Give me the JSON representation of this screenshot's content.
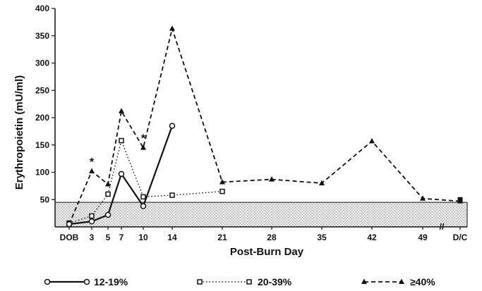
{
  "chart_data": {
    "type": "line",
    "title": "",
    "xlabel": "Post-Burn Day",
    "ylabel": "Erythropoietin (mU/ml)",
    "ylim": [
      0,
      400
    ],
    "y_ticks": [
      "50",
      "100",
      "150",
      "200",
      "250",
      "300",
      "350",
      "400"
    ],
    "categories": [
      "DOB",
      "3",
      "5",
      "7",
      "10",
      "14",
      "21",
      "28",
      "35",
      "42",
      "49",
      "D/C"
    ],
    "axis_break_label": "//",
    "normal_range": {
      "min": 0,
      "max": 45
    },
    "grid": false,
    "legend_placement": "bottom",
    "series": [
      {
        "name": "12-19%",
        "line_style": "solid",
        "marker": "open-circle",
        "points": [
          {
            "x": "DOB",
            "y": 5
          },
          {
            "x": "3",
            "y": 10
          },
          {
            "x": "5",
            "y": 22
          },
          {
            "x": "7",
            "y": 97
          },
          {
            "x": "10",
            "y": 38
          },
          {
            "x": "14",
            "y": 185
          }
        ]
      },
      {
        "name": "20-39%",
        "line_style": "dotted",
        "marker": "open-square",
        "points": [
          {
            "x": "DOB",
            "y": 7
          },
          {
            "x": "3",
            "y": 20
          },
          {
            "x": "5",
            "y": 60
          },
          {
            "x": "7",
            "y": 158
          },
          {
            "x": "10",
            "y": 55
          },
          {
            "x": "14",
            "y": 58
          },
          {
            "x": "21",
            "y": 65
          }
        ]
      },
      {
        "name": "≥40%",
        "line_style": "dashed",
        "marker": "filled-triangle",
        "points": [
          {
            "x": "DOB",
            "y": 5
          },
          {
            "x": "3",
            "y": 102
          },
          {
            "x": "5",
            "y": 78
          },
          {
            "x": "7",
            "y": 212
          },
          {
            "x": "10",
            "y": 145
          },
          {
            "x": "14",
            "y": 363
          },
          {
            "x": "21",
            "y": 82
          },
          {
            "x": "28",
            "y": 87
          },
          {
            "x": "35",
            "y": 80
          },
          {
            "x": "42",
            "y": 157
          },
          {
            "x": "49",
            "y": 52
          },
          {
            "x": "D/C",
            "y": 47
          }
        ]
      }
    ],
    "end_marker": {
      "x": "D/C",
      "y": 50,
      "marker": "filled-square"
    },
    "annotations": [
      {
        "text": "*",
        "x": "3",
        "y": 102
      },
      {
        "text": "*",
        "x": "10",
        "y": 145
      }
    ]
  }
}
